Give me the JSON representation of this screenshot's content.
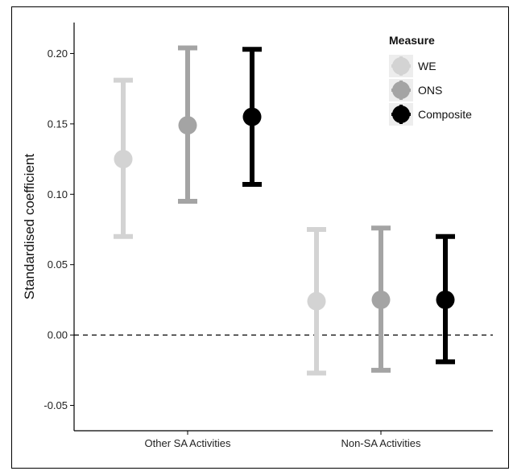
{
  "chart_data": {
    "type": "scatter",
    "subtype": "point-with-error-bars",
    "title": "",
    "xlabel": "",
    "ylabel": "Standardised coefficient",
    "categories": [
      "Other SA Activities",
      "Non-SA Activities"
    ],
    "ylim": [
      -0.068,
      0.222
    ],
    "yticks": [
      -0.05,
      0.0,
      0.05,
      0.1,
      0.15,
      0.2
    ],
    "ytick_labels": [
      "-0.05",
      "0.00",
      "0.05",
      "0.10",
      "0.15",
      "0.20"
    ],
    "reference_line": {
      "y": 0.0,
      "style": "dashed"
    },
    "grid": false,
    "legend": {
      "title": "Measure",
      "placement": "top-right"
    },
    "series": [
      {
        "name": "WE",
        "color": "#d3d3d3",
        "points": [
          {
            "category": "Other SA Activities",
            "value": 0.125,
            "lower": 0.07,
            "upper": 0.181
          },
          {
            "category": "Non-SA Activities",
            "value": 0.024,
            "lower": -0.027,
            "upper": 0.075
          }
        ]
      },
      {
        "name": "ONS",
        "color": "#a4a4a4",
        "points": [
          {
            "category": "Other SA Activities",
            "value": 0.149,
            "lower": 0.095,
            "upper": 0.204
          },
          {
            "category": "Non-SA Activities",
            "value": 0.025,
            "lower": -0.025,
            "upper": 0.076
          }
        ]
      },
      {
        "name": "Composite",
        "color": "#000000",
        "points": [
          {
            "category": "Other SA Activities",
            "value": 0.155,
            "lower": 0.107,
            "upper": 0.203
          },
          {
            "category": "Non-SA Activities",
            "value": 0.025,
            "lower": -0.019,
            "upper": 0.07
          }
        ]
      }
    ]
  }
}
